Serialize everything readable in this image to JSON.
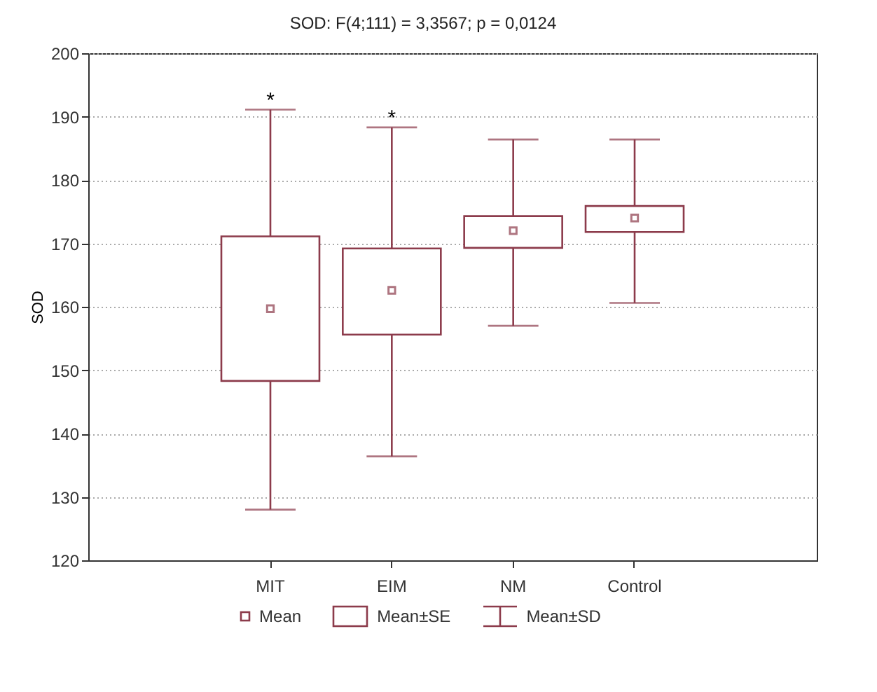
{
  "chart_data": {
    "type": "box",
    "title": "SOD:  F(4;111) = 3,3567; p = 0,0124",
    "ylabel": "SOD",
    "categories": [
      "MIT",
      "EIM",
      "NM",
      "Control"
    ],
    "boxes": [
      {
        "low": 128.0,
        "q1": 148.3,
        "q3": 171.1,
        "high": 191.1,
        "mean": 159.7
      },
      {
        "low": 136.4,
        "q1": 155.6,
        "q3": 169.2,
        "high": 188.3,
        "mean": 162.6
      },
      {
        "low": 157.0,
        "q1": 169.3,
        "q3": 174.3,
        "high": 186.4,
        "mean": 172.0
      },
      {
        "low": 160.6,
        "q1": 171.8,
        "q3": 175.9,
        "high": 186.4,
        "mean": 174.0
      }
    ],
    "color": "#8c3b4b",
    "ylim": [
      120,
      200
    ],
    "yticks": [
      120,
      130,
      140,
      150,
      160,
      170,
      180,
      190,
      200
    ],
    "grid": "y",
    "marker": "square",
    "annotations": [
      {
        "text": "*",
        "x": "MIT",
        "y": 191.1
      },
      {
        "text": "*",
        "x": "EIM",
        "y": 188.3
      },
      "Mean",
      "Mean±SE",
      "Mean±SD"
    ]
  }
}
